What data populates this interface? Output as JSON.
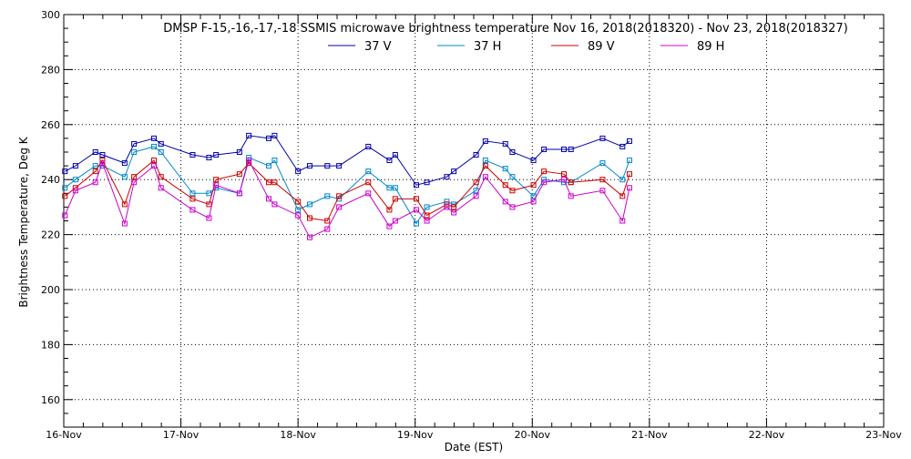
{
  "chart_data": {
    "type": "line",
    "title": "DMSP F-15,-16,-17,-18 SSMIS microwave brightness temperature Nov 16, 2018(2018320) - Nov 23, 2018(2018327)",
    "xlabel": "Date (EST)",
    "ylabel": "Brightness Temperature, Deg K",
    "xlim": [
      0,
      7
    ],
    "ylim": [
      150,
      300
    ],
    "xticks": [
      "16-Nov",
      "17-Nov",
      "18-Nov",
      "19-Nov",
      "20-Nov",
      "21-Nov",
      "22-Nov",
      "23-Nov"
    ],
    "yticks": [
      160,
      180,
      200,
      220,
      240,
      260,
      280,
      300
    ],
    "grid": true,
    "legend_position": "top",
    "series": [
      {
        "name": "37 V",
        "color": "#0000aa",
        "x": [
          0.01,
          0.1,
          0.27,
          0.33,
          0.52,
          0.6,
          0.77,
          0.83,
          1.1,
          1.24,
          1.3,
          1.5,
          1.58,
          1.75,
          1.8,
          2.0,
          2.1,
          2.25,
          2.35,
          2.6,
          2.78,
          2.83,
          3.01,
          3.1,
          3.27,
          3.33,
          3.52,
          3.6,
          3.77,
          3.83,
          4.01,
          4.1,
          4.27,
          4.33,
          4.6,
          4.77,
          4.83
        ],
        "y": [
          243,
          245,
          250,
          249,
          246,
          253,
          255,
          253,
          249,
          248,
          249,
          250,
          256,
          255,
          256,
          243,
          245,
          245,
          245,
          252,
          247,
          249,
          238,
          239,
          241,
          243,
          249,
          254,
          253,
          250,
          247,
          251,
          251,
          251,
          255,
          252,
          254
        ]
      },
      {
        "name": "37 H",
        "color": "#0088cc",
        "x": [
          0.01,
          0.1,
          0.27,
          0.33,
          0.52,
          0.6,
          0.77,
          0.83,
          1.1,
          1.24,
          1.3,
          1.5,
          1.58,
          1.75,
          1.8,
          2.0,
          2.1,
          2.25,
          2.35,
          2.6,
          2.78,
          2.83,
          3.01,
          3.1,
          3.27,
          3.33,
          3.52,
          3.6,
          3.77,
          3.83,
          4.01,
          4.1,
          4.27,
          4.33,
          4.6,
          4.77,
          4.83
        ],
        "y": [
          237,
          240,
          245,
          245,
          241,
          250,
          252,
          250,
          235,
          235,
          237,
          235,
          248,
          245,
          247,
          229,
          231,
          234,
          233,
          243,
          237,
          237,
          224,
          230,
          232,
          231,
          236,
          247,
          244,
          241,
          234,
          240,
          239,
          239,
          246,
          240,
          247
        ]
      },
      {
        "name": "89 V",
        "color": "#cc0000",
        "x": [
          0.01,
          0.1,
          0.27,
          0.33,
          0.52,
          0.6,
          0.77,
          0.83,
          1.1,
          1.24,
          1.3,
          1.5,
          1.58,
          1.75,
          1.8,
          2.0,
          2.1,
          2.25,
          2.35,
          2.6,
          2.78,
          2.83,
          3.01,
          3.1,
          3.27,
          3.33,
          3.52,
          3.6,
          3.77,
          3.83,
          4.01,
          4.1,
          4.27,
          4.33,
          4.6,
          4.77,
          4.83
        ],
        "y": [
          234,
          237,
          243,
          247,
          231,
          241,
          247,
          241,
          233,
          231,
          240,
          242,
          246,
          239,
          239,
          232,
          226,
          225,
          234,
          239,
          229,
          233,
          233,
          227,
          231,
          230,
          239,
          245,
          238,
          236,
          238,
          243,
          242,
          239,
          240,
          234,
          242
        ]
      },
      {
        "name": "89 H",
        "color": "#cc00cc",
        "x": [
          0.01,
          0.1,
          0.27,
          0.33,
          0.52,
          0.6,
          0.77,
          0.83,
          1.1,
          1.24,
          1.3,
          1.5,
          1.58,
          1.75,
          1.8,
          2.0,
          2.1,
          2.25,
          2.35,
          2.6,
          2.78,
          2.83,
          3.01,
          3.1,
          3.27,
          3.33,
          3.52,
          3.6,
          3.77,
          3.83,
          4.01,
          4.1,
          4.27,
          4.33,
          4.6,
          4.77,
          4.83
        ],
        "y": [
          227,
          236,
          239,
          246,
          224,
          239,
          245,
          237,
          229,
          226,
          238,
          235,
          247,
          233,
          231,
          227,
          219,
          222,
          230,
          235,
          223,
          225,
          229,
          225,
          230,
          228,
          234,
          241,
          232,
          230,
          232,
          239,
          240,
          234,
          236,
          225,
          237
        ]
      }
    ]
  }
}
